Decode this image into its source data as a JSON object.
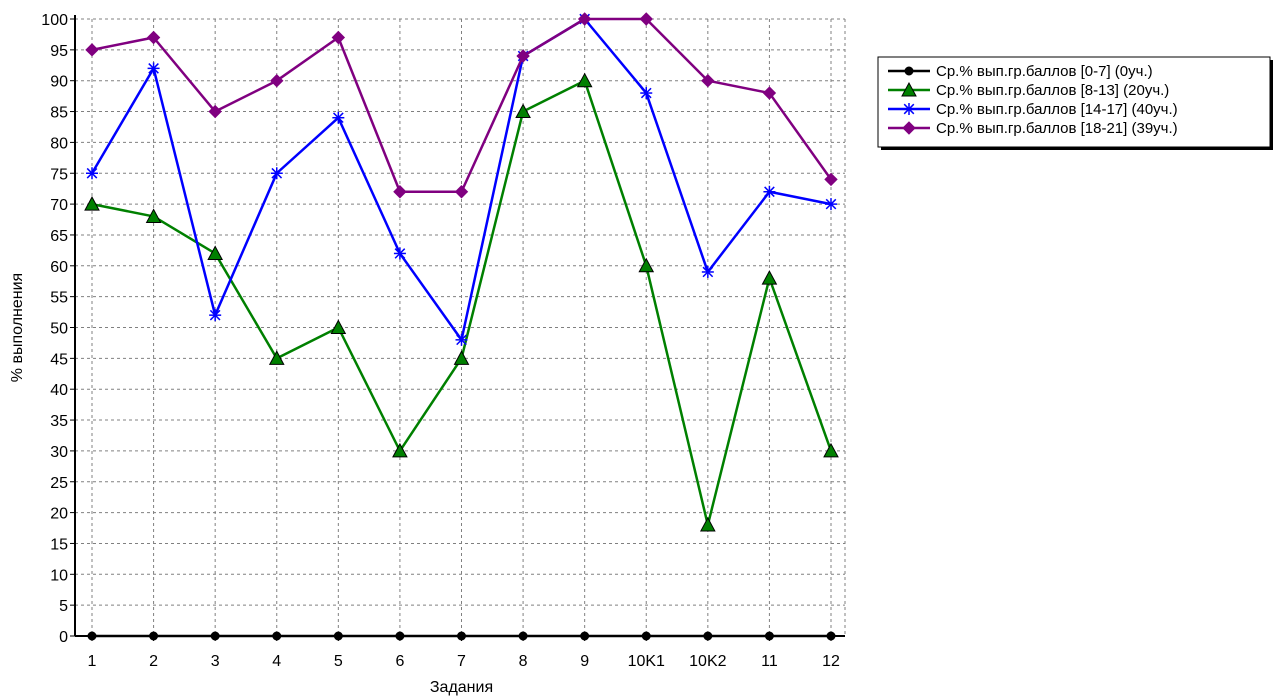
{
  "chart_data": {
    "type": "line",
    "title": "",
    "xlabel": "Задания",
    "ylabel": "% выполнения",
    "categories": [
      "1",
      "2",
      "3",
      "4",
      "5",
      "6",
      "7",
      "8",
      "9",
      "10K1",
      "10K2",
      "11",
      "12"
    ],
    "ylim": [
      0,
      100
    ],
    "ytick_step": 5,
    "grid": true,
    "legend_position": "right",
    "series": [
      {
        "name": "Ср.% вып.гр.баллов [0-7] (0уч.)",
        "color": "#000000",
        "marker": "circle",
        "values": [
          0,
          0,
          0,
          0,
          0,
          0,
          0,
          0,
          0,
          0,
          0,
          0,
          0
        ]
      },
      {
        "name": "Ср.% вып.гр.баллов [8-13] (20уч.)",
        "color": "#008000",
        "marker": "triangle",
        "values": [
          70,
          68,
          62,
          45,
          50,
          30,
          45,
          85,
          90,
          60,
          18,
          58,
          30
        ]
      },
      {
        "name": "Ср.% вып.гр.баллов [14-17] (40уч.)",
        "color": "#0000ff",
        "marker": "asterisk",
        "values": [
          75,
          92,
          52,
          75,
          84,
          62,
          48,
          94,
          100,
          88,
          59,
          72,
          70
        ]
      },
      {
        "name": "Ср.% вып.гр.баллов [18-21] (39уч.)",
        "color": "#800080",
        "marker": "diamond",
        "values": [
          95,
          97,
          85,
          90,
          97,
          72,
          72,
          94,
          100,
          100,
          90,
          88,
          74
        ]
      }
    ]
  }
}
